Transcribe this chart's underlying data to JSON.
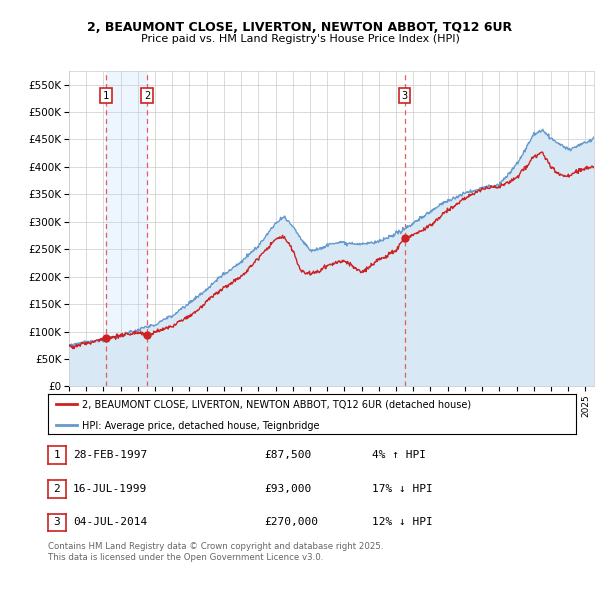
{
  "title_line1": "2, BEAUMONT CLOSE, LIVERTON, NEWTON ABBOT, TQ12 6UR",
  "title_line2": "Price paid vs. HM Land Registry's House Price Index (HPI)",
  "ylim": [
    0,
    575000
  ],
  "yticks": [
    0,
    50000,
    100000,
    150000,
    200000,
    250000,
    300000,
    350000,
    400000,
    450000,
    500000,
    550000
  ],
  "ytick_labels": [
    "£0",
    "£50K",
    "£100K",
    "£150K",
    "£200K",
    "£250K",
    "£300K",
    "£350K",
    "£400K",
    "£450K",
    "£500K",
    "£550K"
  ],
  "x_start_year": 1995.0,
  "x_end_year": 2025.5,
  "transactions": [
    {
      "label": "1",
      "date_num": 1997.16,
      "price": 87500
    },
    {
      "label": "2",
      "date_num": 1999.54,
      "price": 93000
    },
    {
      "label": "3",
      "date_num": 2014.5,
      "price": 270000
    }
  ],
  "legend_line1": "2, BEAUMONT CLOSE, LIVERTON, NEWTON ABBOT, TQ12 6UR (detached house)",
  "legend_line2": "HPI: Average price, detached house, Teignbridge",
  "table_entries": [
    {
      "num": "1",
      "date": "28-FEB-1997",
      "price": "£87,500",
      "hpi_str": "4% ↑ HPI"
    },
    {
      "num": "2",
      "date": "16-JUL-1999",
      "price": "£93,000",
      "hpi_str": "17% ↓ HPI"
    },
    {
      "num": "3",
      "date": "04-JUL-2014",
      "price": "£270,000",
      "hpi_str": "12% ↓ HPI"
    }
  ],
  "footer": "Contains HM Land Registry data © Crown copyright and database right 2025.\nThis data is licensed under the Open Government Licence v3.0.",
  "red_line_color": "#cc2222",
  "blue_line_color": "#6699cc",
  "blue_fill_color": "#d8e8f5",
  "grid_color": "#cccccc",
  "dashed_line_color": "#e06060",
  "background_color": "#ffffff",
  "hpi_keypoints_x": [
    1995,
    1996,
    1997,
    1998,
    1999,
    2000,
    2001,
    2002,
    2003,
    2004,
    2005,
    2006,
    2007,
    2007.5,
    2008,
    2008.5,
    2009,
    2009.5,
    2010,
    2011,
    2012,
    2013,
    2014,
    2015,
    2016,
    2017,
    2018,
    2019,
    2020,
    2021,
    2022,
    2022.5,
    2023,
    2024,
    2025,
    2025.5
  ],
  "hpi_keypoints_y": [
    72000,
    76000,
    84000,
    92000,
    100000,
    112000,
    128000,
    150000,
    175000,
    205000,
    228000,
    260000,
    300000,
    310000,
    295000,
    270000,
    250000,
    252000,
    258000,
    262000,
    258000,
    265000,
    278000,
    298000,
    320000,
    338000,
    352000,
    362000,
    368000,
    405000,
    460000,
    468000,
    452000,
    432000,
    442000,
    450000
  ],
  "red_keypoints_x": [
    1995,
    1996,
    1997,
    1997.2,
    1998,
    1999,
    1999.5,
    2000,
    2001,
    2002,
    2003,
    2004,
    2005,
    2006,
    2007,
    2007.5,
    2008,
    2008.5,
    2009,
    2009.5,
    2010,
    2011,
    2012,
    2013,
    2014,
    2014.5,
    2015,
    2016,
    2017,
    2018,
    2019,
    2020,
    2021,
    2022,
    2022.5,
    2023,
    2023.5,
    2024,
    2025,
    2025.5
  ],
  "red_keypoints_y": [
    75000,
    80000,
    88000,
    88500,
    94000,
    98000,
    94000,
    100000,
    112000,
    130000,
    155000,
    180000,
    200000,
    232000,
    265000,
    270000,
    245000,
    205000,
    202000,
    205000,
    218000,
    225000,
    205000,
    230000,
    248000,
    270000,
    278000,
    295000,
    322000,
    345000,
    360000,
    362000,
    380000,
    418000,
    425000,
    398000,
    388000,
    385000,
    400000,
    400000
  ]
}
